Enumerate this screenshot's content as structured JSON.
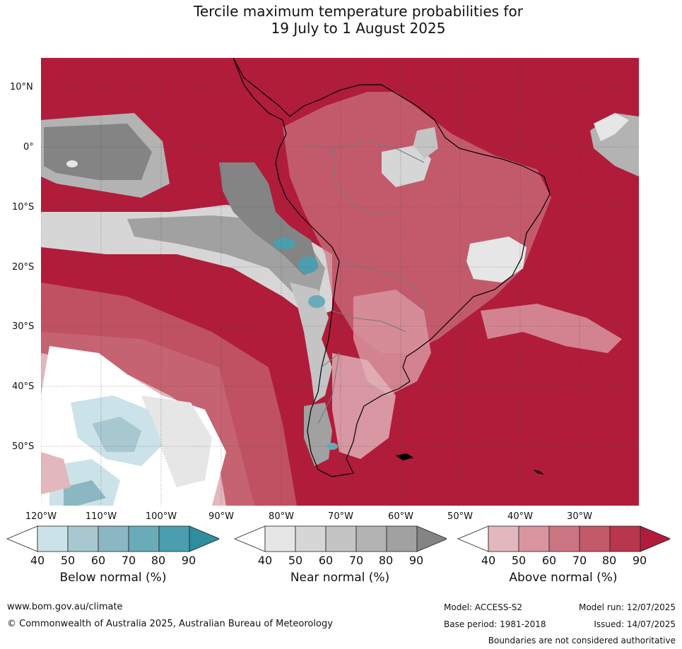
{
  "title_line1": "Tercile maximum temperature probabilities for",
  "title_line2": "19 July to 1 August 2025",
  "lat_labels": [
    "10°N",
    "0°",
    "10°S",
    "20°S",
    "30°S",
    "40°S",
    "50°S"
  ],
  "lon_labels": [
    "120°W",
    "110°W",
    "100°W",
    "90°W",
    "80°W",
    "70°W",
    "60°W",
    "50°W",
    "40°W",
    "30°W"
  ],
  "colorbars": [
    {
      "name": "below",
      "title": "Below normal (%)",
      "ticks": [
        "40",
        "50",
        "60",
        "70",
        "80",
        "90"
      ],
      "colors": [
        "#ffffff",
        "#cbe2e8",
        "#a8c8cf",
        "#8ab7c2",
        "#6aabb8",
        "#4b9eae",
        "#2e8d9f"
      ]
    },
    {
      "name": "near",
      "title": "Near normal (%)",
      "ticks": [
        "40",
        "50",
        "60",
        "70",
        "80",
        "90"
      ],
      "colors": [
        "#ffffff",
        "#e6e6e6",
        "#d6d6d6",
        "#c4c4c4",
        "#b3b3b3",
        "#a1a1a1",
        "#848484"
      ]
    },
    {
      "name": "above",
      "title": "Above normal (%)",
      "ticks": [
        "40",
        "50",
        "60",
        "70",
        "80",
        "90"
      ],
      "colors": [
        "#ffffff",
        "#e2b7bd",
        "#d8959f",
        "#cc7582",
        "#c25a6a",
        "#b8374d",
        "#b01c3a"
      ]
    }
  ],
  "footer": {
    "url": "www.bom.gov.au/climate",
    "copyright": "© Commonwealth of Australia 2025, Australian Bureau of Meteorology",
    "model": "Model: ACCESS-S2",
    "model_run": "Model run: 12/07/2025",
    "base_period": "Base period: 1981-2018",
    "issued": "Issued: 14/07/2025",
    "disclaimer": "Boundaries are not considered authoritative"
  }
}
